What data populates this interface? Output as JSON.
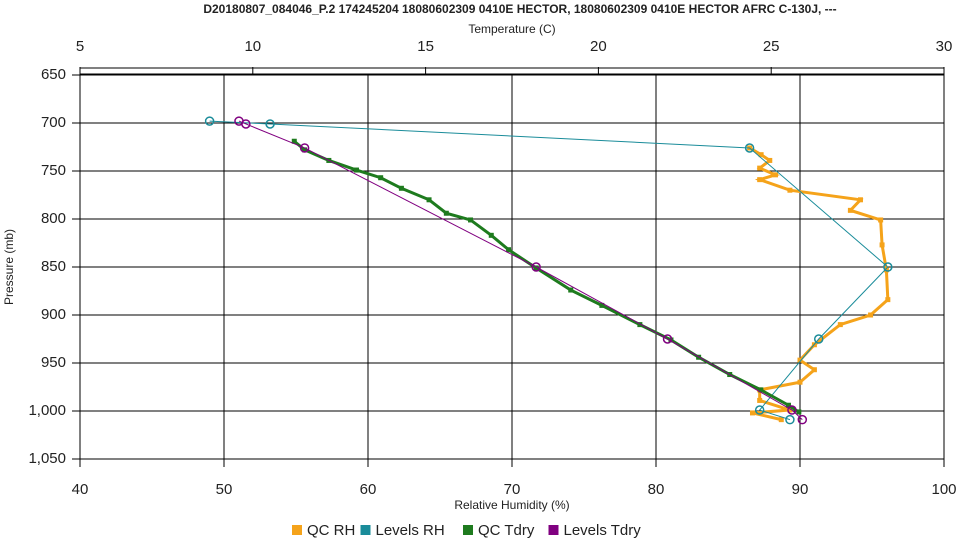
{
  "chart_data": {
    "type": "line",
    "title": "D20180807_084046_P.2 174245204 18080602309 0410E HECTOR, 18080602309 0410E HECTOR AFRC C-130J, ---",
    "x_label": "Relative Humidity (%)",
    "x2_label": "Temperature (C)",
    "y_label": "Pressure (mb)",
    "xlim": [
      40,
      100
    ],
    "xticks": [
      40,
      50,
      60,
      70,
      80,
      90,
      100
    ],
    "x2lim": [
      5,
      30
    ],
    "x2ticks": [
      5,
      10,
      15,
      20,
      25,
      30
    ],
    "ylim": [
      650,
      1050
    ],
    "y_inverted": true,
    "yticks": [
      650,
      700,
      750,
      800,
      850,
      900,
      950,
      {
        "value": 1000,
        "label": "1,000"
      },
      {
        "value": 1050,
        "label": "1,050"
      }
    ],
    "grid": true,
    "legend": "bottom",
    "series": [
      {
        "name": "QC RH",
        "color": "#f5a31a",
        "axis": "x",
        "x": [
          86.5,
          87.3,
          87.9,
          87.2,
          88.3,
          87.2,
          89.3,
          94.2,
          93.5,
          95.6,
          95.7,
          96.0,
          96.1,
          94.9,
          92.8,
          91.0,
          90.0,
          91.0,
          90.0,
          87.2,
          87.2,
          89.3,
          86.7,
          88.7
        ],
        "values": [
          726,
          733,
          739,
          747,
          754,
          759,
          770,
          780,
          791,
          801,
          827,
          853,
          884,
          900,
          910,
          931,
          947,
          957,
          970,
          978,
          989,
          999,
          1002,
          1009
        ]
      },
      {
        "name": "Levels RH",
        "color": "#1a8c9a",
        "axis": "x",
        "x": [
          49.0,
          53.2,
          86.5,
          96.1,
          91.3,
          87.2,
          89.3
        ],
        "values": [
          698,
          701,
          726,
          850,
          925,
          999,
          1009
        ]
      },
      {
        "name": "QC Tdry",
        "color": "#1e7b1e",
        "axis": "x2",
        "x": [
          11.2,
          11.5,
          12.2,
          13.0,
          13.7,
          14.3,
          15.1,
          15.6,
          16.3,
          16.9,
          17.4,
          18.2,
          19.2,
          20.1,
          21.2,
          22.1,
          22.9,
          23.8,
          24.7,
          25.5,
          25.8
        ],
        "values": [
          719,
          728,
          739,
          749,
          757,
          768,
          780,
          794,
          801,
          817,
          832,
          851,
          874,
          890,
          910,
          926,
          944,
          962,
          978,
          994,
          1001
        ]
      },
      {
        "name": "Levels Tdry",
        "color": "#800080",
        "axis": "x2",
        "x": [
          9.6,
          9.8,
          11.5,
          18.2,
          22.0,
          25.6,
          25.9
        ],
        "values": [
          698,
          701,
          726,
          850,
          925,
          999,
          1009
        ]
      }
    ]
  }
}
